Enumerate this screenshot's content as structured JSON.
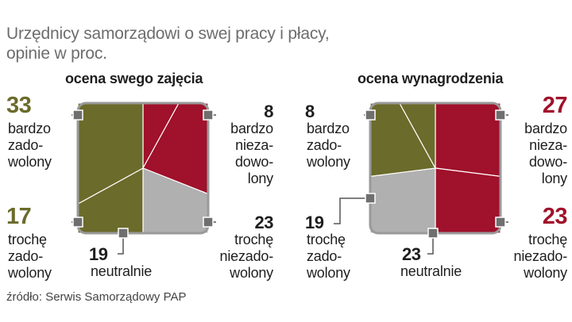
{
  "title_lines": [
    "Urzędnicy samorządowi o swej pracy i płacy,",
    "opinie w proc."
  ],
  "source": "źródło: Serwis Samorządowy PAP",
  "colors": {
    "bardzo_zadowolony": "#6b6b2b",
    "troche_zadowolony": "#6b6b2b",
    "neutralnie": "#b0b0b0",
    "troche_niezadowolony": "#a0112b",
    "bardzo_niezadowolony": "#a0112b"
  },
  "chart_data": [
    {
      "type": "pie",
      "title": "ocena  swego zajęcia",
      "categories": [
        "bardzo zadowolony",
        "trochę zadowolony",
        "neutralnie",
        "trochę niezadowolony",
        "bardzo niezadowolony"
      ],
      "values": [
        33,
        17,
        19,
        23,
        8
      ],
      "label_lines": [
        [
          "bardzo",
          "zado-",
          "wolony"
        ],
        [
          "trochę",
          "zado-",
          "wolony"
        ],
        [
          "neutralnie"
        ],
        [
          "trochę",
          "niezado-",
          "wolony"
        ],
        [
          "bardzo",
          "nieza-",
          "dowo-",
          "lony"
        ]
      ],
      "value_labels": [
        "33",
        "17",
        "19",
        "23",
        "8"
      ]
    },
    {
      "type": "pie",
      "title": "ocena wynagrodzenia",
      "categories": [
        "bardzo zadowolony",
        "trochę zadowolony",
        "neutralnie",
        "trochę niezadowolony",
        "bardzo niezadowolony"
      ],
      "values": [
        8,
        19,
        23,
        23,
        27
      ],
      "label_lines": [
        [
          "bardzo",
          "zado-",
          "wolony"
        ],
        [
          "trochę",
          "zado-",
          "wolony"
        ],
        [
          "neutralnie"
        ],
        [
          "trochę",
          "niezado-",
          "wolony"
        ],
        [
          "bardzo",
          "nieza-",
          "dowo-",
          "lony"
        ]
      ],
      "value_labels": [
        "8",
        "19",
        "23",
        "23",
        "27"
      ]
    }
  ]
}
